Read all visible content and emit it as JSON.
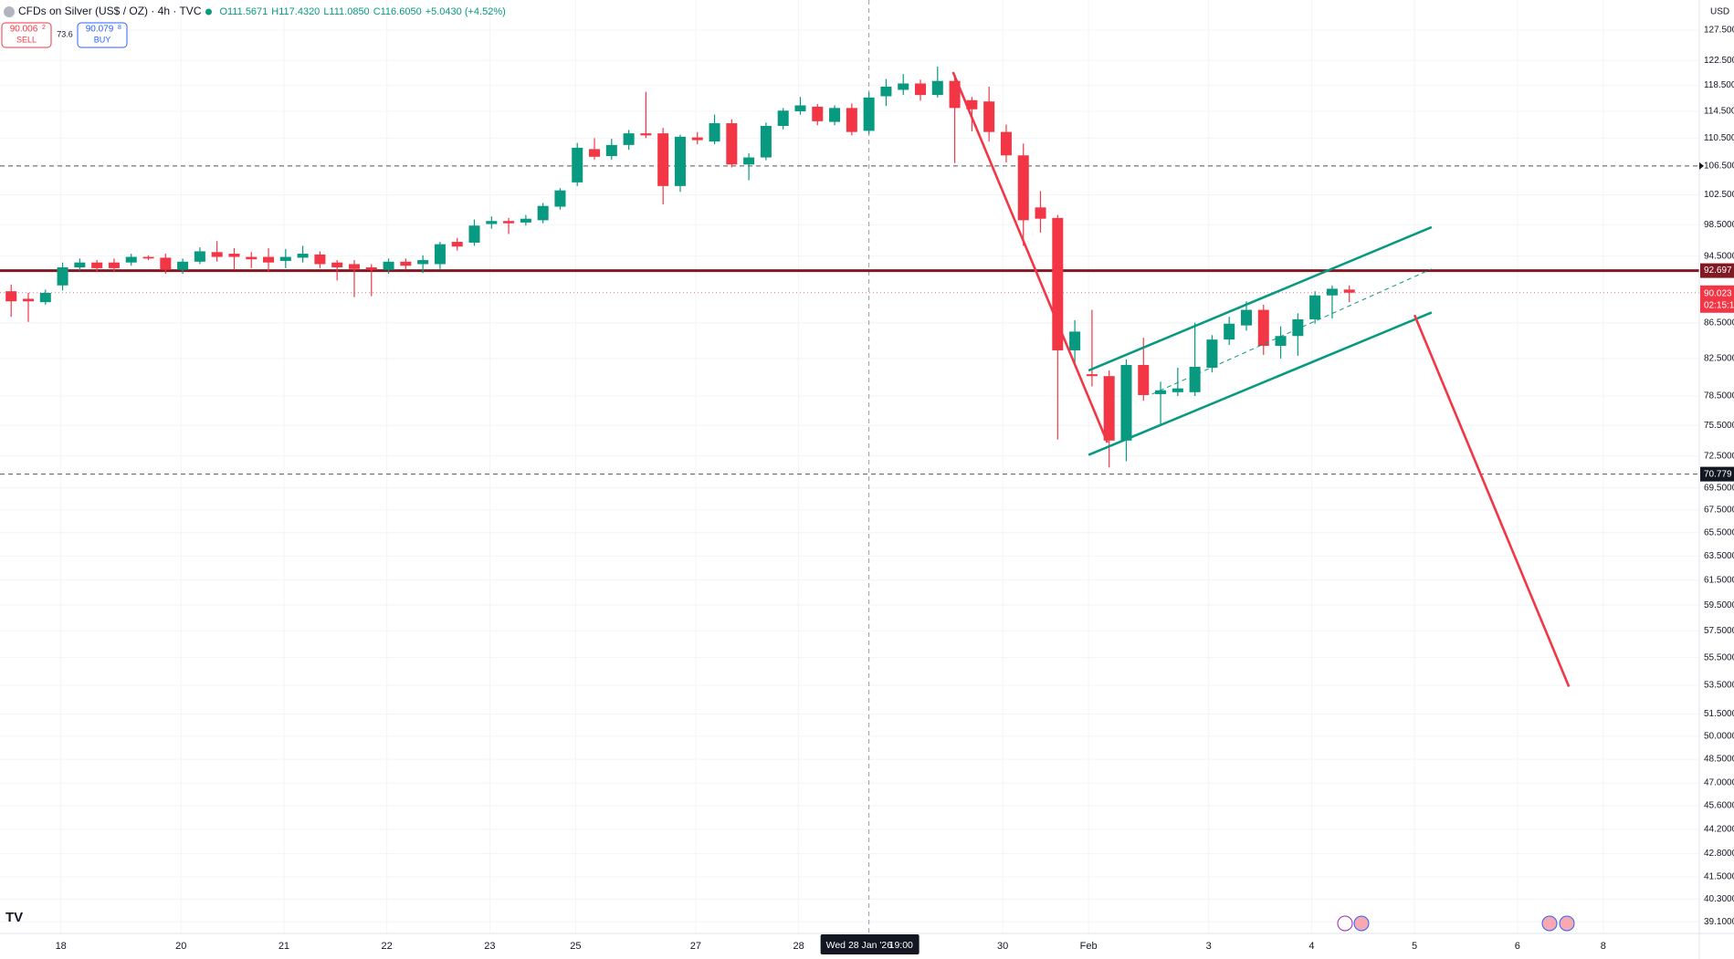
{
  "header": {
    "symbol": "CFDs on Silver (US$ / OZ) · 4h · TVC",
    "open": "O111.5671",
    "high": "H117.4320",
    "low": "L111.0850",
    "close": "C116.6050",
    "change": "+5.0430 (+4.52%)"
  },
  "trade": {
    "sell_price": "90.006",
    "sell_sup": "2",
    "sell_label": "SELL",
    "spread": "73.6",
    "buy_price": "90.079",
    "buy_sup": "8",
    "buy_label": "BUY"
  },
  "chart_data": {
    "type": "candlestick",
    "currency": "USD",
    "up_color": "#089981",
    "down_color": "#f23645",
    "log_scale": true,
    "grid": true,
    "open": [
      90.2,
      89.3,
      88.9,
      90.9,
      93.1,
      93.7,
      93.7,
      93.7,
      94.4,
      94.3,
      92.8,
      93.8,
      95.0,
      94.8,
      94.4,
      94.4,
      93.9,
      94.3,
      94.7,
      93.7,
      93.5,
      93.1,
      92.8,
      93.8,
      93.5,
      93.5,
      96.3,
      96.2,
      98.6,
      99.0,
      98.8,
      99.1,
      100.9,
      104.2,
      108.9,
      107.9,
      109.5,
      111.2,
      111.2,
      103.7,
      110.6,
      110.0,
      112.7,
      106.7,
      107.7,
      112.3,
      114.5,
      115.2,
      112.9,
      115.0,
      111.57,
      116.8,
      117.8,
      118.8,
      117.0,
      119.2,
      116.2,
      116.0,
      111.4,
      108.0,
      100.8,
      99.4,
      83.4,
      80.8,
      80.6,
      74.0,
      81.8,
      78.7,
      78.9,
      78.9,
      81.5,
      84.6,
      86.2,
      88.0,
      83.9,
      85.0,
      86.9,
      89.7,
      90.4
    ],
    "high": [
      91.0,
      90.0,
      90.4,
      93.7,
      94.2,
      94.0,
      94.2,
      94.8,
      94.6,
      94.8,
      94.2,
      95.6,
      96.4,
      95.5,
      95.0,
      95.5,
      95.4,
      95.8,
      95.1,
      94.0,
      94.0,
      93.5,
      94.2,
      94.2,
      94.6,
      96.3,
      96.8,
      99.2,
      99.6,
      99.4,
      99.8,
      101.4,
      103.4,
      109.8,
      110.5,
      110.4,
      111.7,
      117.5,
      112.0,
      111.0,
      111.4,
      114.0,
      113.3,
      108.3,
      112.8,
      115.0,
      116.7,
      115.6,
      115.4,
      115.7,
      117.43,
      119.5,
      120.3,
      119.4,
      121.5,
      120.3,
      116.7,
      118.3,
      112.5,
      109.7,
      103.0,
      99.8,
      86.8,
      88.0,
      81.2,
      82.4,
      84.8,
      80.0,
      81.5,
      86.5,
      85.1,
      87.2,
      89.0,
      88.6,
      86.1,
      87.6,
      90.2,
      90.9,
      90.9
    ],
    "low": [
      87.2,
      86.6,
      88.6,
      90.3,
      92.7,
      92.5,
      92.5,
      93.3,
      94.0,
      92.3,
      92.3,
      93.5,
      93.8,
      92.8,
      93.0,
      92.5,
      93.0,
      93.7,
      93.0,
      91.5,
      89.5,
      89.6,
      92.3,
      92.8,
      92.4,
      92.8,
      95.2,
      95.8,
      98.0,
      97.3,
      98.4,
      98.7,
      100.5,
      103.7,
      107.4,
      107.4,
      108.8,
      110.5,
      101.2,
      102.9,
      109.6,
      109.6,
      106.3,
      104.5,
      107.3,
      111.8,
      114.0,
      112.4,
      112.4,
      110.9,
      111.09,
      115.3,
      117.0,
      116.1,
      116.6,
      106.9,
      111.5,
      110.0,
      107.0,
      95.8,
      97.5,
      74.1,
      82.0,
      79.5,
      71.4,
      72.0,
      78.0,
      75.6,
      78.5,
      78.5,
      81.0,
      84.0,
      85.6,
      82.9,
      82.5,
      82.8,
      86.4,
      87.0,
      88.9
    ],
    "close": [
      89.0,
      89.0,
      90.0,
      93.1,
      93.7,
      93.0,
      93.0,
      94.4,
      94.2,
      92.8,
      93.8,
      95.1,
      94.4,
      94.4,
      94.1,
      93.7,
      94.4,
      94.8,
      93.5,
      93.1,
      92.9,
      92.8,
      93.8,
      93.3,
      94.0,
      96.0,
      95.7,
      98.4,
      99.0,
      98.7,
      99.3,
      101.0,
      103.1,
      109.1,
      107.8,
      109.5,
      111.2,
      110.9,
      103.7,
      110.7,
      110.2,
      112.7,
      106.7,
      107.7,
      112.3,
      114.6,
      115.4,
      113.0,
      115.0,
      111.4,
      116.61,
      118.3,
      118.8,
      117.0,
      119.2,
      115.0,
      114.8,
      111.4,
      108.0,
      99.1,
      99.3,
      83.4,
      85.5,
      80.6,
      74.0,
      81.8,
      78.6,
      79.1,
      79.3,
      81.6,
      84.6,
      86.4,
      88.0,
      83.9,
      85.0,
      86.9,
      89.7,
      90.5,
      90.023
    ],
    "xlim": [
      -0.65,
      98.4
    ],
    "xticks": [
      {
        "value": 2.9,
        "label": "18"
      },
      {
        "value": 9.9,
        "label": "20"
      },
      {
        "value": 15.9,
        "label": "21"
      },
      {
        "value": 21.9,
        "label": "22"
      },
      {
        "value": 27.9,
        "label": "23"
      },
      {
        "value": 32.9,
        "label": "25"
      },
      {
        "value": 39.9,
        "label": "27"
      },
      {
        "value": 45.9,
        "label": "28"
      },
      {
        "value": 57.8,
        "label": "30"
      },
      {
        "value": 62.8,
        "label": "Feb"
      },
      {
        "value": 69.8,
        "label": "3"
      },
      {
        "value": 75.8,
        "label": "4"
      },
      {
        "value": 81.8,
        "label": "5"
      },
      {
        "value": 87.8,
        "label": "6"
      },
      {
        "value": 92.8,
        "label": "8"
      }
    ],
    "ylim": [
      38.5,
      132.7
    ],
    "yticks": [
      {
        "value": 127.5,
        "label": "127.5000"
      },
      {
        "value": 122.5,
        "label": "122.5000"
      },
      {
        "value": 118.5,
        "label": "118.5000"
      },
      {
        "value": 114.5,
        "label": "114.5000"
      },
      {
        "value": 110.5,
        "label": "110.5000"
      },
      {
        "value": 106.5,
        "label": "106.5000"
      },
      {
        "value": 102.5,
        "label": "102.5000"
      },
      {
        "value": 98.5,
        "label": "98.5000"
      },
      {
        "value": 94.5,
        "label": "94.5000"
      },
      {
        "value": 86.5,
        "label": "86.5000"
      },
      {
        "value": 82.5,
        "label": "82.5000"
      },
      {
        "value": 78.5,
        "label": "78.5000"
      },
      {
        "value": 75.5,
        "label": "75.5000"
      },
      {
        "value": 72.5,
        "label": "72.5000"
      },
      {
        "value": 69.5,
        "label": "69.5000"
      },
      {
        "value": 67.5,
        "label": "67.5000"
      },
      {
        "value": 65.5,
        "label": "65.5000"
      },
      {
        "value": 63.5,
        "label": "63.5000"
      },
      {
        "value": 61.5,
        "label": "61.5000"
      },
      {
        "value": 59.5,
        "label": "59.5000"
      },
      {
        "value": 57.5,
        "label": "57.5000"
      },
      {
        "value": 55.5,
        "label": "55.5000"
      },
      {
        "value": 53.5,
        "label": "53.5000"
      },
      {
        "value": 51.5,
        "label": "51.5000"
      },
      {
        "value": 50.0,
        "label": "50.0000"
      },
      {
        "value": 48.5,
        "label": "48.5000"
      },
      {
        "value": 47.0,
        "label": "47.0000"
      },
      {
        "value": 45.6,
        "label": "45.6000"
      },
      {
        "value": 44.2,
        "label": "44.2000"
      },
      {
        "value": 42.8,
        "label": "42.8000"
      },
      {
        "value": 41.5,
        "label": "41.5000"
      },
      {
        "value": 40.3,
        "label": "40.3000"
      },
      {
        "value": 39.1,
        "label": "39.1000"
      }
    ],
    "price_lines": [
      {
        "value": 92.697,
        "color": "#801922",
        "width": 3,
        "dashed": false,
        "tag": true
      },
      {
        "value": 106.5,
        "color": "#555555",
        "width": 1,
        "dashed": true,
        "tag": false
      },
      {
        "value": 70.779,
        "color": "#555555",
        "width": 1,
        "dashed": true,
        "tag": true
      }
    ],
    "last_price": {
      "value": 90.023,
      "countdown": "02:15:1",
      "color": "#f23645"
    },
    "trend_lines": [
      {
        "x": [
          62.8,
          82.8
        ],
        "y": [
          81.2,
          98.2
        ],
        "color": "#089981",
        "dashed": false
      },
      {
        "x": [
          62.8,
          82.8
        ],
        "y": [
          72.6,
          87.7
        ],
        "color": "#089981",
        "dashed": false
      },
      {
        "x": [
          66.5,
          82.8
        ],
        "y": [
          78.7,
          92.9
        ],
        "color": "#089981",
        "dashed": true
      },
      {
        "x": [
          54.9,
          63.9
        ],
        "y": [
          120.6,
          73.8
        ],
        "color": "#f23645",
        "dashed": false
      },
      {
        "x": [
          81.8,
          90.8
        ],
        "y": [
          87.4,
          53.4
        ],
        "color": "#f23645",
        "dashed": false
      }
    ],
    "crosshair": {
      "x": 50,
      "date": "Wed 28 Jan '26",
      "time": "19:00"
    }
  }
}
